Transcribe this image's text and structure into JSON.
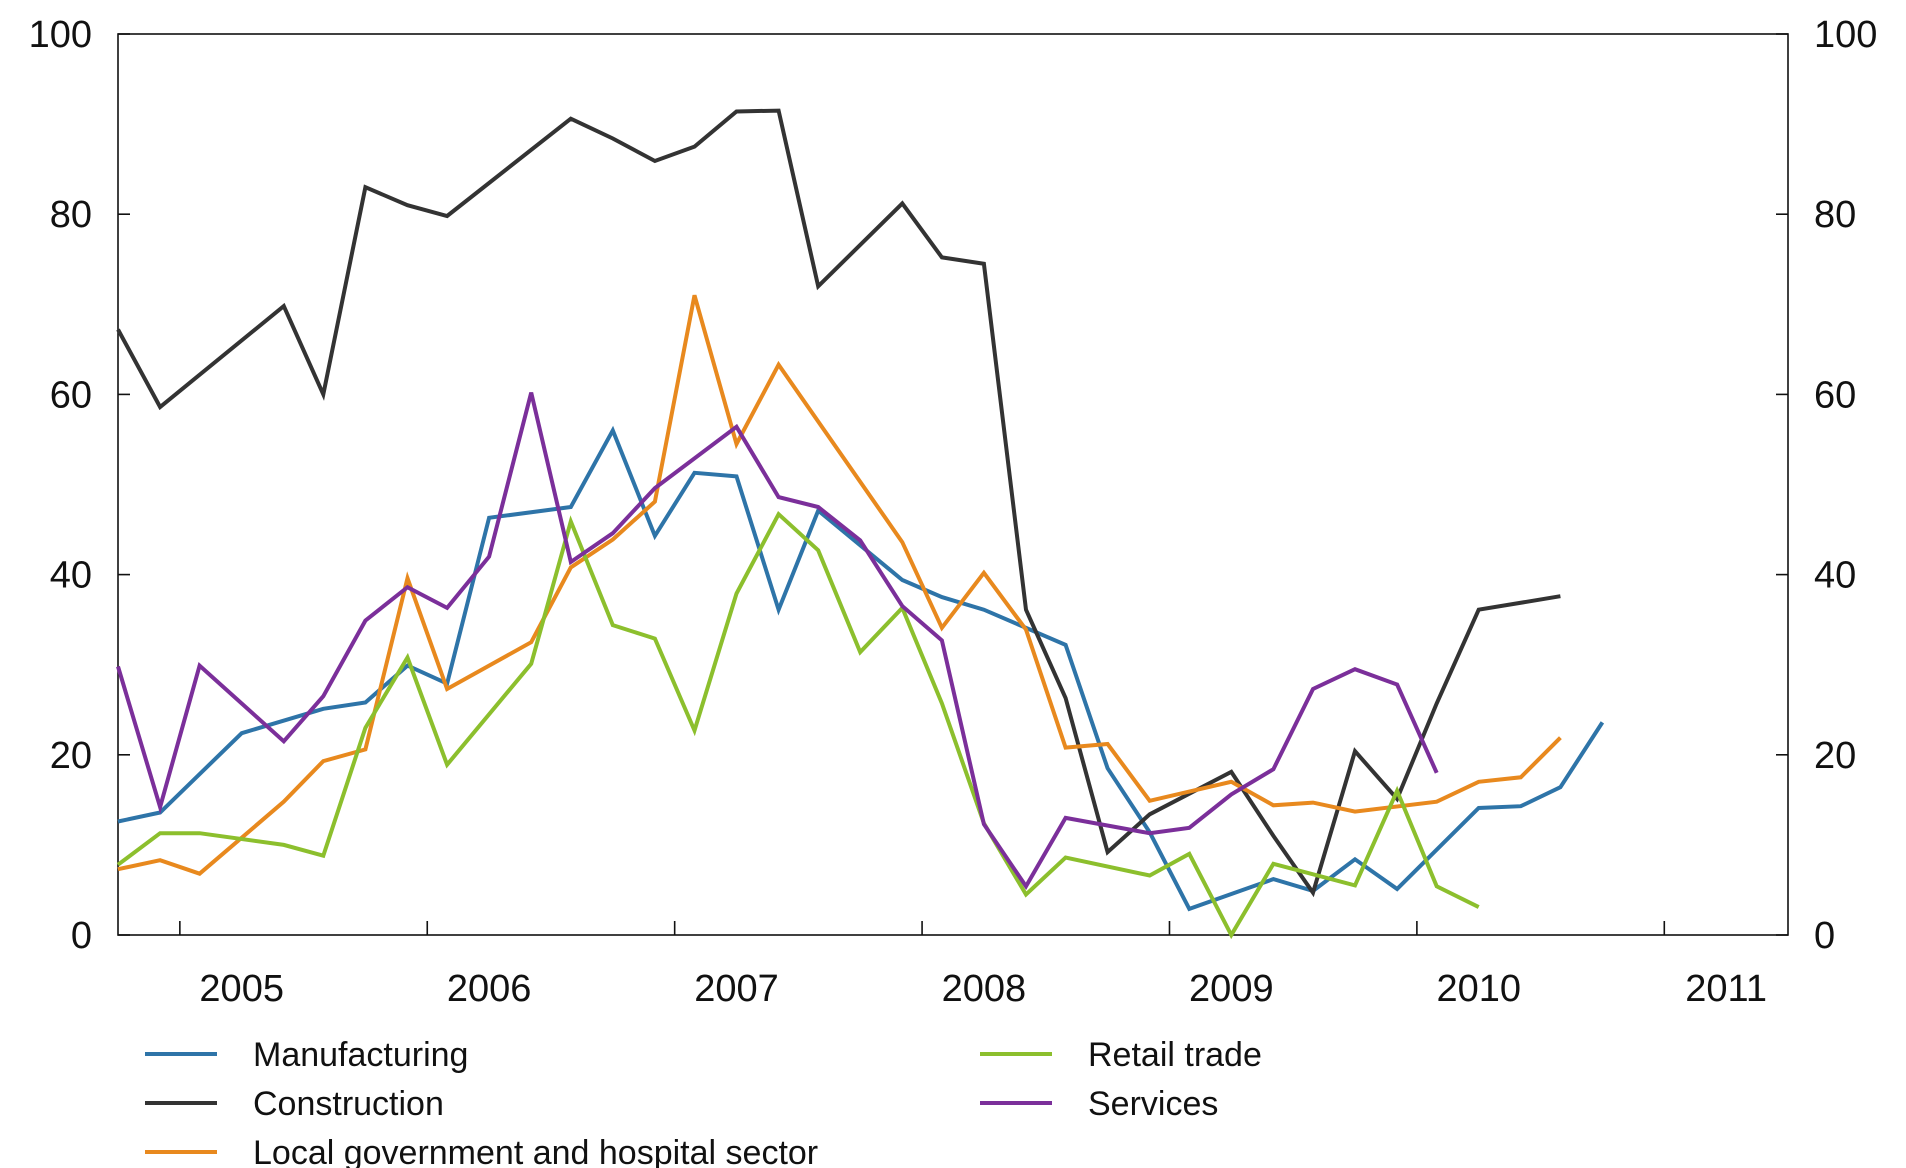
{
  "chart_data": {
    "type": "line",
    "title": "",
    "xlabel": "",
    "ylabel": "",
    "ylim": [
      0,
      100
    ],
    "ylim_right": [
      0,
      100
    ],
    "yticks": [
      0,
      20,
      40,
      60,
      80,
      100
    ],
    "xlim": [
      2004.5,
      2011.25
    ],
    "year_labels": [
      "2005",
      "2006",
      "2007",
      "2008",
      "2009",
      "2010",
      "2011"
    ],
    "grid": false,
    "legend_position": "bottom",
    "x": [
      2004.5,
      2004.67,
      2004.83,
      2005.0,
      2005.17,
      2005.33,
      2005.5,
      2005.67,
      2005.83,
      2006.0,
      2006.17,
      2006.33,
      2006.5,
      2006.67,
      2006.83,
      2007.0,
      2007.17,
      2007.33,
      2007.5,
      2007.67,
      2007.83,
      2008.0,
      2008.17,
      2008.33,
      2008.5,
      2008.67,
      2008.83,
      2009.0,
      2009.17,
      2009.33,
      2009.5,
      2009.67,
      2009.83,
      2010.0,
      2010.17,
      2010.33,
      2010.5,
      2010.67,
      2010.83,
      2011.0
    ],
    "series": [
      {
        "name": "Manufacturing",
        "color": "#2e74a8",
        "values": [
          12.6,
          13.6,
          null,
          22.4,
          null,
          25.1,
          25.8,
          29.9,
          27.9,
          46.3,
          null,
          47.5,
          56.0,
          44.3,
          51.3,
          50.9,
          36.1,
          47.1,
          null,
          39.4,
          37.5,
          36.1,
          null,
          32.2,
          18.5,
          11.4,
          2.9,
          null,
          6.2,
          4.9,
          8.4,
          5.1,
          null,
          14.1,
          14.3,
          16.4,
          23.6,
          null,
          null,
          null
        ]
      },
      {
        "name": "Construction",
        "color": "#333333",
        "values": [
          67.2,
          58.6,
          null,
          null,
          69.8,
          60.0,
          83.0,
          81.0,
          79.8,
          null,
          null,
          90.6,
          88.4,
          85.9,
          87.5,
          91.4,
          91.5,
          72.0,
          null,
          81.2,
          75.2,
          74.5,
          36.1,
          26.3,
          9.2,
          13.4,
          null,
          18.1,
          11.0,
          4.7,
          20.4,
          15.1,
          25.7,
          36.1,
          null,
          37.6,
          null,
          null,
          null,
          null
        ]
      },
      {
        "name": "Local government and hospital sector",
        "color": "#e8891e",
        "values": [
          7.3,
          8.3,
          6.8,
          null,
          14.8,
          19.3,
          20.6,
          39.6,
          27.3,
          null,
          32.5,
          40.8,
          43.9,
          48.1,
          71.0,
          54.5,
          63.3,
          null,
          null,
          43.6,
          34.1,
          40.2,
          33.9,
          20.8,
          21.2,
          14.9,
          null,
          17.0,
          14.4,
          14.7,
          13.7,
          null,
          14.8,
          17.0,
          17.5,
          21.9,
          null,
          null,
          null,
          null
        ]
      },
      {
        "name": "Retail trade",
        "color": "#8cbf2d",
        "values": [
          7.8,
          11.3,
          11.3,
          null,
          10.0,
          8.8,
          23.0,
          30.8,
          18.9,
          null,
          30.1,
          45.9,
          34.4,
          32.9,
          22.7,
          37.9,
          46.7,
          42.7,
          31.4,
          36.3,
          25.7,
          12.4,
          4.5,
          8.6,
          null,
          6.6,
          9.0,
          0.0,
          7.9,
          null,
          5.5,
          16.0,
          5.4,
          3.1,
          null,
          null,
          null,
          null,
          null,
          null
        ]
      },
      {
        "name": "Services",
        "color": "#7b2f9a",
        "values": [
          29.8,
          14.2,
          29.9,
          null,
          21.5,
          26.5,
          34.9,
          38.6,
          36.3,
          42.0,
          60.2,
          41.4,
          44.6,
          49.6,
          null,
          56.4,
          48.6,
          47.5,
          43.8,
          36.5,
          32.7,
          12.3,
          5.4,
          13.0,
          null,
          11.3,
          11.9,
          15.6,
          18.4,
          27.3,
          29.5,
          27.8,
          18.0,
          null,
          null,
          null,
          null,
          null,
          null,
          null
        ]
      }
    ]
  }
}
